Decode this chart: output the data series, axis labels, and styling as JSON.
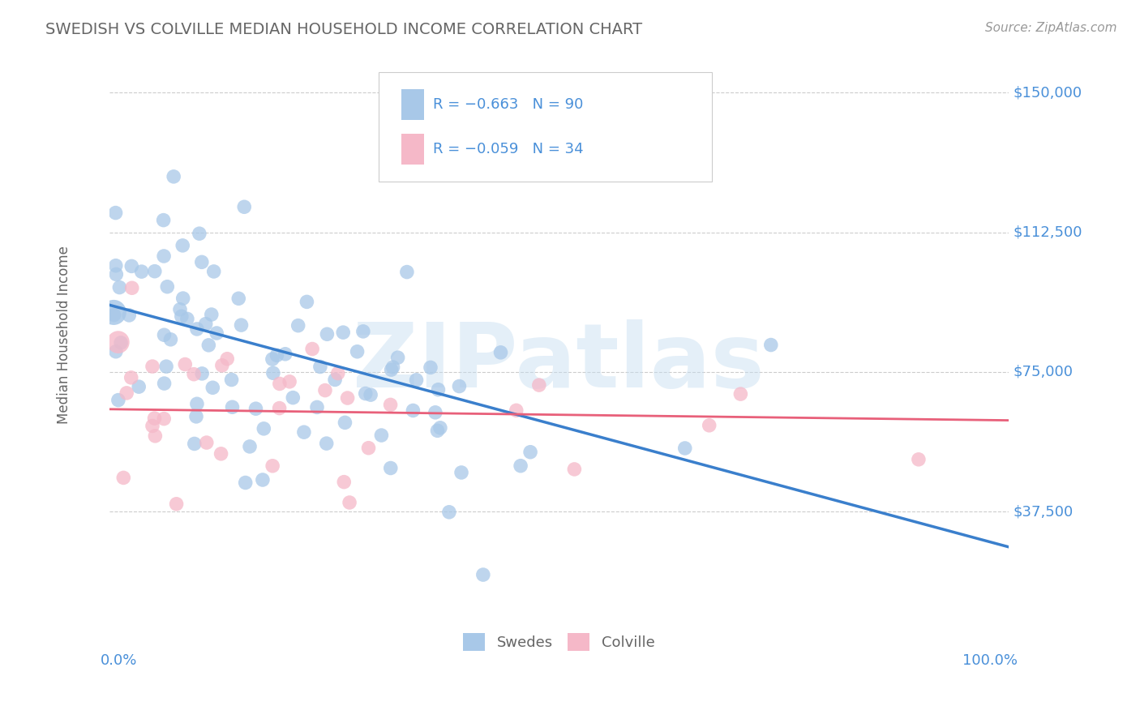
{
  "title": "SWEDISH VS COLVILLE MEDIAN HOUSEHOLD INCOME CORRELATION CHART",
  "source_text": "Source: ZipAtlas.com",
  "ylabel": "Median Household Income",
  "xlim": [
    0.0,
    1.0
  ],
  "ylim": [
    10000,
    160000
  ],
  "yticks": [
    37500,
    75000,
    112500,
    150000
  ],
  "ytick_labels": [
    "$37,500",
    "$75,000",
    "$112,500",
    "$150,000"
  ],
  "watermark": "ZIPatlas",
  "legend_label_swedes": "Swedes",
  "legend_label_colville": "Colville",
  "blue_scatter_color": "#a8c8e8",
  "pink_scatter_color": "#f5b8c8",
  "blue_line_color": "#3a7fcc",
  "pink_line_color": "#e8607a",
  "title_color": "#666666",
  "axis_label_color": "#666666",
  "tick_label_color": "#4a90d9",
  "source_color": "#999999",
  "background_color": "#ffffff",
  "grid_color": "#cccccc",
  "R_swedish": -0.663,
  "N_swedish": 90,
  "R_colville": -0.059,
  "N_colville": 34,
  "blue_line_y0": 93000,
  "blue_line_y1": 28000,
  "pink_line_y0": 65000,
  "pink_line_y1": 62000
}
